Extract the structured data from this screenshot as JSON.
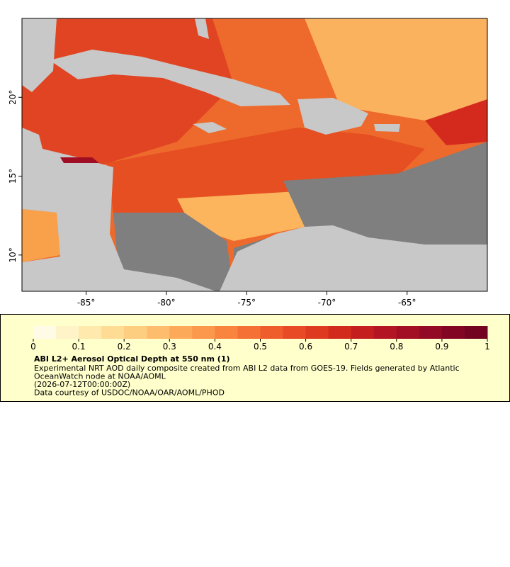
{
  "map": {
    "xlim": [
      -89,
      -60
    ],
    "ylim": [
      7.7,
      25
    ],
    "xticks": [
      {
        "value": -85,
        "label": "-85°"
      },
      {
        "value": -80,
        "label": "-80°"
      },
      {
        "value": -75,
        "label": "-75°"
      },
      {
        "value": -70,
        "label": "-70°"
      },
      {
        "value": -65,
        "label": "-65°"
      }
    ],
    "yticks": [
      {
        "value": 10,
        "label": "10°"
      },
      {
        "value": 15,
        "label": "15°"
      },
      {
        "value": 20,
        "label": "20°"
      }
    ]
  },
  "colorbar": {
    "range": [
      0,
      1
    ],
    "ticks": [
      0,
      0.1,
      0.2,
      0.3,
      0.4,
      0.5,
      0.6,
      0.7,
      0.8,
      0.9,
      1
    ],
    "colors": [
      "#fffbe6",
      "#fff3c8",
      "#ffe9ac",
      "#fedc94",
      "#fdcd80",
      "#fdbd6c",
      "#fcaa5a",
      "#fb984c",
      "#f9843e",
      "#f57034",
      "#f05d2c",
      "#e84a25",
      "#de3a20",
      "#d22b1e",
      "#c41e1f",
      "#b41522",
      "#a30e24",
      "#920a25",
      "#820624",
      "#720321"
    ]
  },
  "legend": {
    "title": "ABI L2+ Aerosol Optical Depth at 550 nm (1)",
    "lines": [
      "Experimental NRT AOD daily composite created from ABI L2 data from GOES-19. Fields generated by Atlantic",
      "OceanWatch node at NOAA/AOML",
      "(2026-07-12T00:00:00Z)",
      "Data courtesy of USDOC/NOAA/OAR/AOML/PHOD"
    ]
  }
}
